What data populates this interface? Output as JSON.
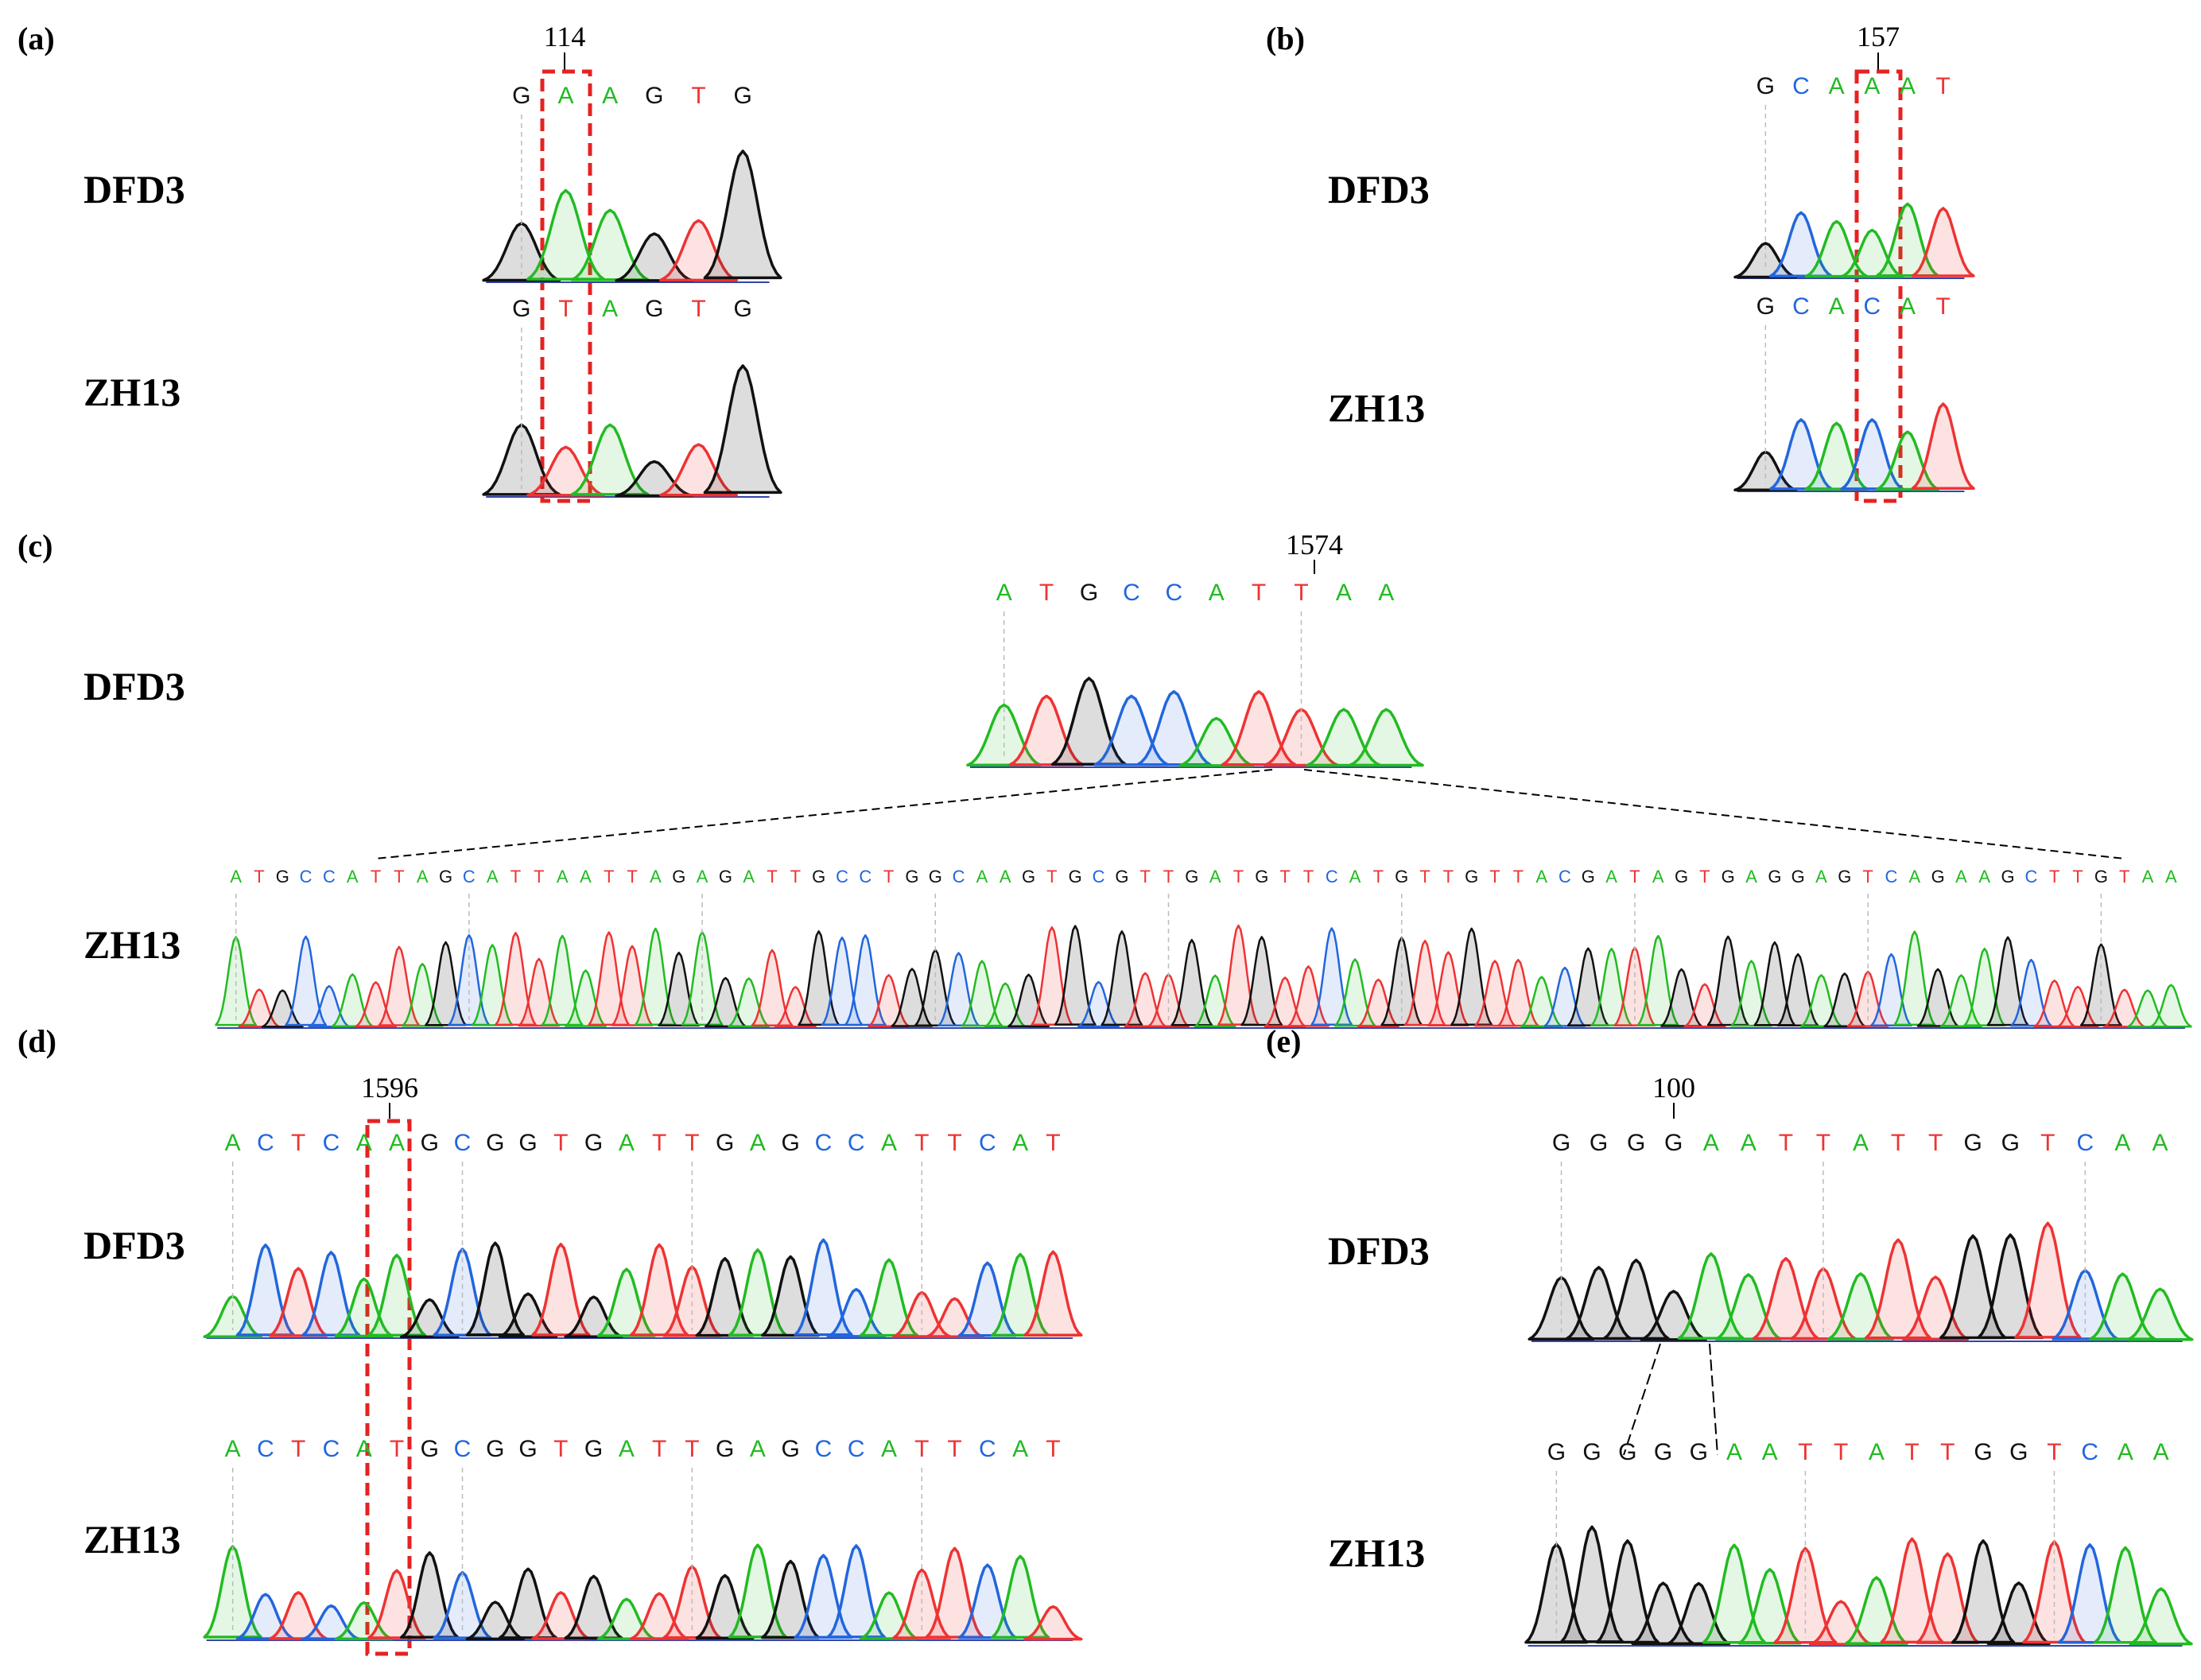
{
  "colors": {
    "A": "#22bb22",
    "T": "#ee3333",
    "G": "#111111",
    "C": "#2266dd",
    "highlight": "#e52222",
    "guide": "#bbbbbb"
  },
  "panels": {
    "a": {
      "label": "(a)",
      "position": "114",
      "top": {
        "sample": "DFD3",
        "sequence": "GAAGTG",
        "heights": [
          0.45,
          0.7,
          0.55,
          0.37,
          0.47,
          1.0
        ]
      },
      "bottom": {
        "sample": "ZH13",
        "sequence": "GTAGTG",
        "heights": [
          0.55,
          0.38,
          0.55,
          0.27,
          0.4,
          1.0
        ]
      }
    },
    "b": {
      "label": "(b)",
      "position": "157",
      "top": {
        "sample": "DFD3",
        "sequence": "GCAAAT",
        "heights": [
          0.4,
          0.75,
          0.65,
          0.55,
          0.85,
          0.8
        ]
      },
      "bottom": {
        "sample": "ZH13",
        "sequence": "GCACAT",
        "heights": [
          0.45,
          0.82,
          0.78,
          0.82,
          0.68,
          1.0
        ]
      }
    },
    "c": {
      "label": "(c)",
      "position": "1574",
      "top": {
        "sample": "DFD3",
        "sequence": "ATGCCATTAA",
        "heights": [
          0.7,
          0.8,
          1.0,
          0.8,
          0.85,
          0.55,
          0.85,
          0.65,
          0.65,
          0.65
        ]
      },
      "bottom": {
        "sample": "ZH13",
        "sequence": "ATGCCATTAGCATTAATTAGAGATTGCCTGGCAAGTGCGTTGATGTTCATGTTGTTACGATAGTGAGGAGTCAGAAGCTTGTAA"
      }
    },
    "d": {
      "label": "(d)",
      "position": "1596",
      "top": {
        "sample": "DFD3",
        "sequence": "ACTCAAGCGGTGATTGAGCCATTCAT"
      },
      "bottom": {
        "sample": "ZH13",
        "sequence": "ACTCATGCGGTGATTGAGCCATTCAT"
      }
    },
    "e": {
      "label": "(e)",
      "position": "100",
      "top": {
        "sample": "DFD3",
        "sequence": "GGGGAATTATTGGTCAA"
      },
      "bottom": {
        "sample": "ZH13",
        "sequence": "GGGGGAATTATTGGTCAA"
      }
    }
  }
}
